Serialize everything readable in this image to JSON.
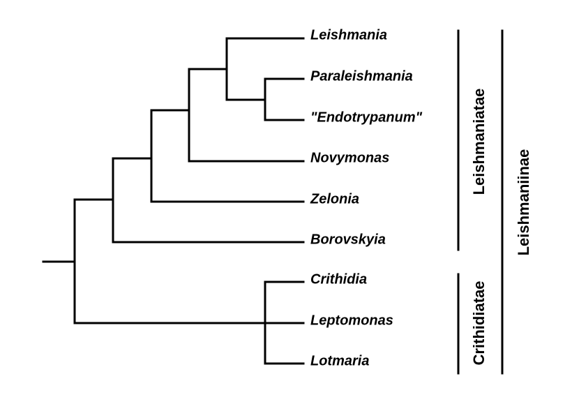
{
  "taxa": [
    "Leishmania",
    "Paraleishmania",
    "\"Endotrypanum\"",
    "Novymonas",
    "Zelonia",
    "Borovskyia",
    "Crithidia",
    "Leptomonas",
    "Lotmaria"
  ],
  "clades": {
    "leishmaniatae": "Leishmaniatae",
    "crithidiatae": "Crithidiatae",
    "leishmaniinae": "Leishmaniinae"
  }
}
